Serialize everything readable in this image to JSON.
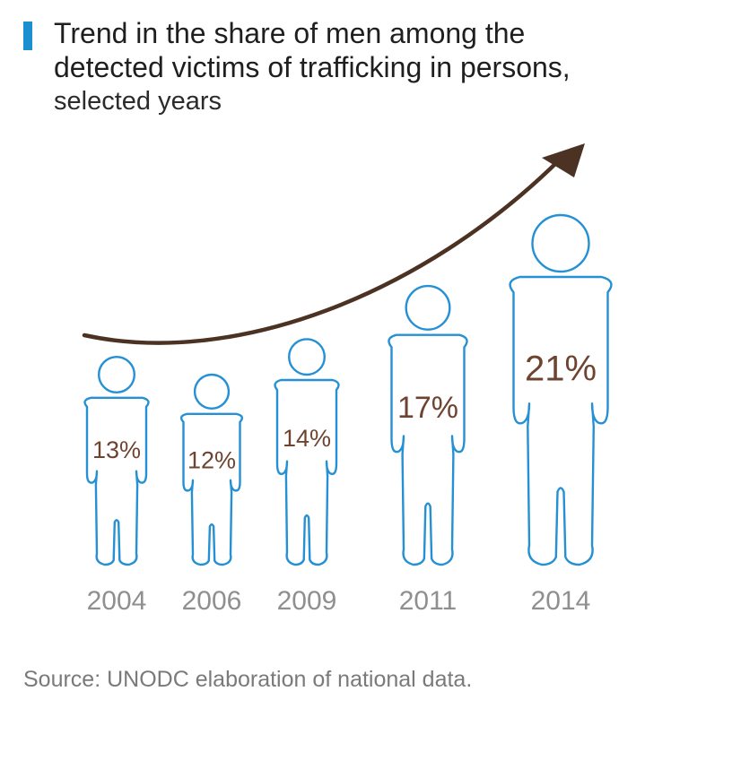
{
  "title_lines": [
    "Trend in the share of men among the",
    "detected victims of trafficking in persons,"
  ],
  "subtitle": "selected years",
  "source": "Source: UNODC elaboration of national data.",
  "colors": {
    "accent": "#1b8fd0",
    "figure_outline": "#2590d4",
    "arrow": "#4b3222",
    "value_text": "#6e4431",
    "year_text": "#8f8f8f"
  },
  "chart_data": {
    "type": "pictograph",
    "title": "Trend in the share of men among the detected victims of trafficking in persons, selected years",
    "categories": [
      "2004",
      "2006",
      "2009",
      "2011",
      "2014"
    ],
    "values": [
      13,
      12,
      14,
      17,
      21
    ],
    "value_labels": [
      "13%",
      "12%",
      "14%",
      "17%",
      "21%"
    ],
    "unit": "%",
    "trend_arrow": "increasing"
  }
}
